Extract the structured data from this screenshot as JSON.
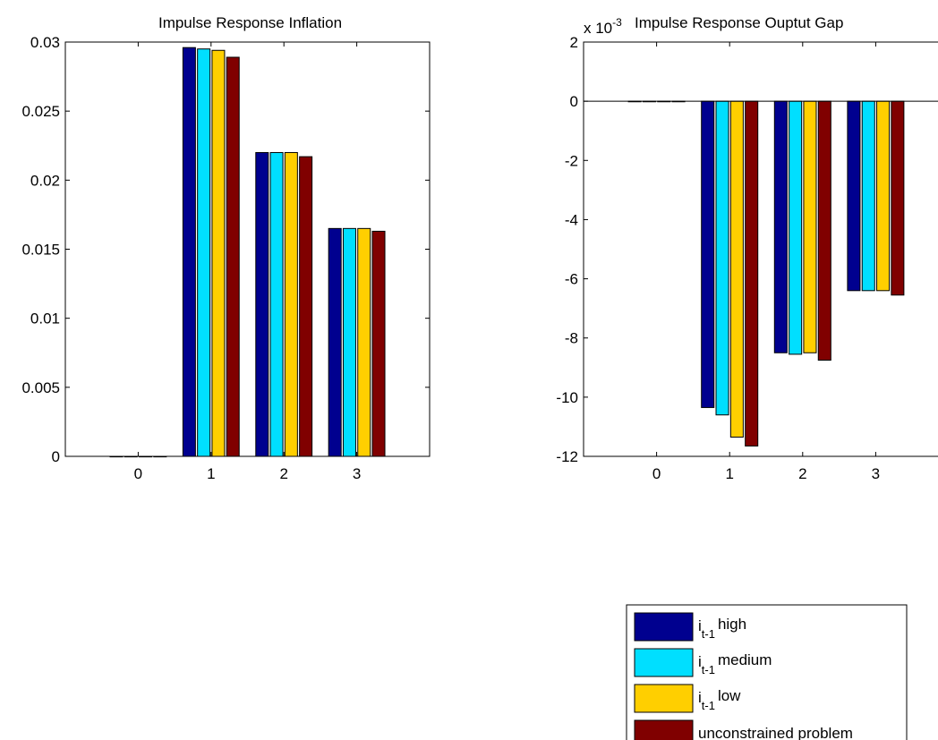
{
  "chart_data": [
    {
      "type": "bar",
      "title": "Impulse Response Inflation",
      "categories": [
        "0",
        "1",
        "2",
        "3"
      ],
      "ylim": [
        0,
        0.03
      ],
      "yticks": [
        "0",
        "0.005",
        "0.01",
        "0.015",
        "0.02",
        "0.025",
        "0.03"
      ],
      "ytick_values": [
        0,
        0.005,
        0.01,
        0.015,
        0.02,
        0.025,
        0.03
      ],
      "xlim": [
        -1,
        4
      ],
      "series": [
        {
          "values": [
            0.0,
            0.0296,
            0.022,
            0.0165
          ]
        },
        {
          "values": [
            0.0,
            0.0295,
            0.022,
            0.0165
          ]
        },
        {
          "values": [
            0.0,
            0.0294,
            0.022,
            0.0165
          ]
        },
        {
          "values": [
            0.0,
            0.0289,
            0.0217,
            0.0163
          ]
        }
      ]
    },
    {
      "type": "bar",
      "title": "Impulse Response Ouptut Gap",
      "exponent_label": "x 10",
      "exponent_power": "-3",
      "categories": [
        "0",
        "1",
        "2",
        "3"
      ],
      "ylim": [
        -12,
        2
      ],
      "yticks": [
        "2",
        "0",
        "-2",
        "-4",
        "-6",
        "-8",
        "-10",
        "-12"
      ],
      "ytick_values": [
        2,
        0,
        -2,
        -4,
        -6,
        -8,
        -10,
        -12
      ],
      "xlim": [
        -1,
        4
      ],
      "series": [
        {
          "values": [
            0.0,
            -10.35,
            -8.5,
            -6.4
          ]
        },
        {
          "values": [
            0.0,
            -10.6,
            -8.55,
            -6.4
          ]
        },
        {
          "values": [
            0.0,
            -11.35,
            -8.5,
            -6.4
          ]
        },
        {
          "values": [
            0.0,
            -11.65,
            -8.75,
            -6.55
          ]
        }
      ]
    }
  ],
  "legend": {
    "placement": "bottom-right",
    "entries": [
      {
        "symbol": "i",
        "subscript": "t-1",
        "text": "high",
        "color": "#00008F"
      },
      {
        "symbol": "i",
        "subscript": "t-1",
        "text": "medium",
        "color": "#00DFFF"
      },
      {
        "symbol": "i",
        "subscript": "t-1",
        "text": "low",
        "color": "#FFCF00"
      },
      {
        "symbol": "",
        "subscript": "",
        "text": "unconstrained problem",
        "color": "#800000"
      }
    ]
  },
  "colors": [
    "#00008F",
    "#00DFFF",
    "#FFCF00",
    "#800000"
  ]
}
